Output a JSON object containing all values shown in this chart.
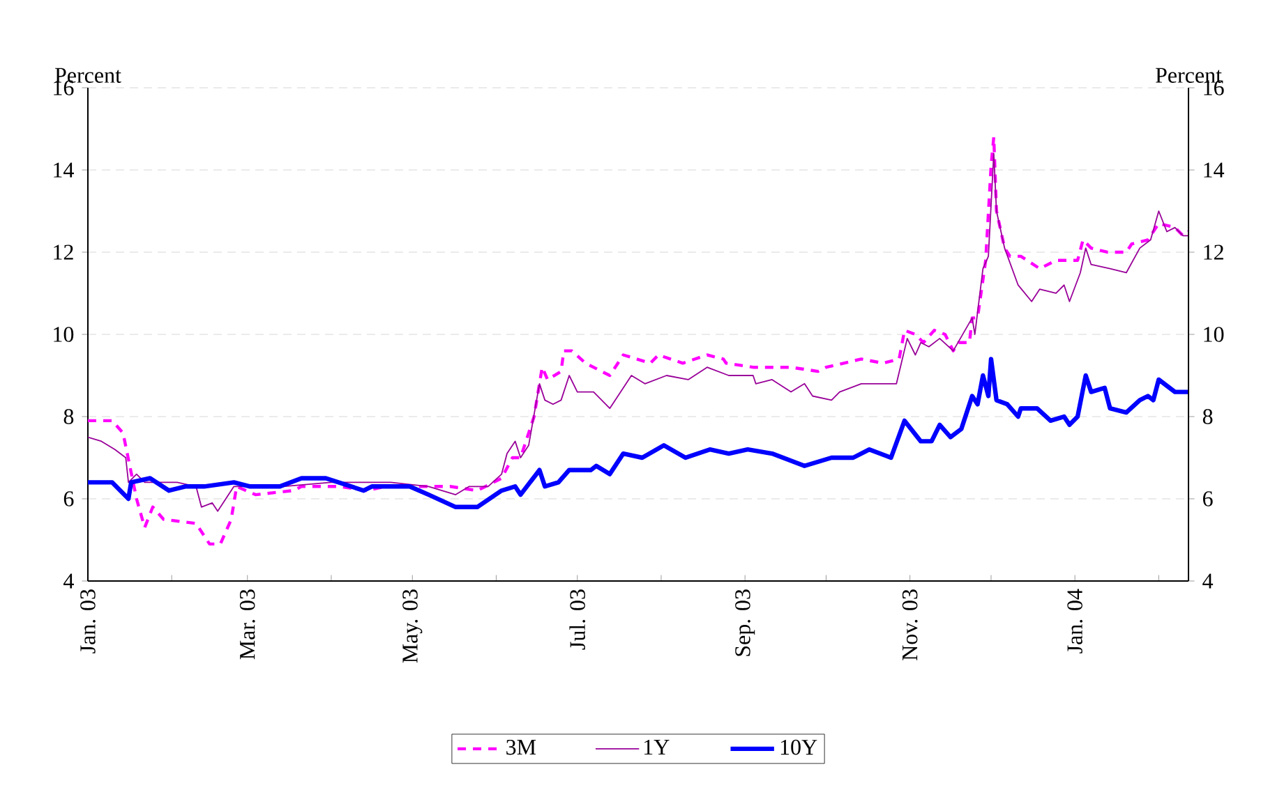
{
  "chart_data": {
    "type": "line",
    "ylabel": "Percent",
    "y2label": "Percent",
    "xlim": [
      "2003-01-01",
      "2004-02-12"
    ],
    "ylim": [
      4,
      16
    ],
    "y2lim": [
      4,
      16
    ],
    "yticks": [
      4,
      6,
      8,
      10,
      12,
      14,
      16
    ],
    "y2ticks": [
      4,
      6,
      8,
      10,
      12,
      14,
      16
    ],
    "xticks": [
      {
        "value": "2003-01-01",
        "label": "Jan. 03"
      },
      {
        "value": "2003-02-01",
        "label": null
      },
      {
        "value": "2003-03-01",
        "label": "Mar. 03"
      },
      {
        "value": "2003-04-01",
        "label": null
      },
      {
        "value": "2003-05-01",
        "label": "May. 03"
      },
      {
        "value": "2003-06-01",
        "label": null
      },
      {
        "value": "2003-07-01",
        "label": "Jul. 03"
      },
      {
        "value": "2003-08-01",
        "label": null
      },
      {
        "value": "2003-09-01",
        "label": "Sep. 03"
      },
      {
        "value": "2003-10-01",
        "label": null
      },
      {
        "value": "2003-11-01",
        "label": "Nov. 03"
      },
      {
        "value": "2003-12-01",
        "label": null
      },
      {
        "value": "2004-01-01",
        "label": "Jan. 04"
      },
      {
        "value": "2004-02-01",
        "label": null
      }
    ],
    "grid": "y",
    "legend": "bottom",
    "marker": "none",
    "series": [
      {
        "name": "3M",
        "color": "#ff00ff",
        "line_style": "dashed",
        "x": [
          "2003-01-01",
          "2003-01-10",
          "2003-01-14",
          "2003-01-19",
          "2003-01-22",
          "2003-01-25",
          "2003-01-29",
          "2003-02-10",
          "2003-02-15",
          "2003-02-19",
          "2003-02-23",
          "2003-02-25",
          "2003-03-04",
          "2003-03-18",
          "2003-03-21",
          "2003-04-04",
          "2003-04-14",
          "2003-04-21",
          "2003-04-30",
          "2003-05-15",
          "2003-05-25",
          "2003-06-03",
          "2003-06-07",
          "2003-06-10",
          "2003-06-15",
          "2003-06-18",
          "2003-06-20",
          "2003-06-25",
          "2003-06-26",
          "2003-06-29",
          "2003-07-04",
          "2003-07-13",
          "2003-07-18",
          "2003-07-28",
          "2003-07-31",
          "2003-08-09",
          "2003-08-18",
          "2003-08-24",
          "2003-08-25",
          "2003-09-04",
          "2003-09-18",
          "2003-09-28",
          "2003-10-01",
          "2003-10-14",
          "2003-10-22",
          "2003-10-28",
          "2003-10-30",
          "2003-11-03",
          "2003-11-06",
          "2003-11-10",
          "2003-11-14",
          "2003-11-17",
          "2003-11-19",
          "2003-11-23",
          "2003-11-24",
          "2003-11-26",
          "2003-11-29",
          "2003-12-01",
          "2003-12-02",
          "2003-12-03",
          "2003-12-06",
          "2003-12-08",
          "2003-12-12",
          "2003-12-19",
          "2003-12-25",
          "2004-01-02",
          "2004-01-04",
          "2004-01-07",
          "2004-01-13",
          "2004-01-20",
          "2004-01-22",
          "2004-01-28",
          "2004-02-01",
          "2004-02-07",
          "2004-02-10",
          "2004-02-12"
        ],
        "values": [
          7.9,
          7.9,
          7.6,
          6.0,
          5.3,
          5.8,
          5.5,
          5.4,
          4.9,
          4.9,
          5.5,
          6.3,
          6.1,
          6.2,
          6.3,
          6.3,
          6.2,
          6.3,
          6.3,
          6.3,
          6.2,
          6.5,
          7.0,
          7.0,
          8.0,
          9.2,
          8.9,
          9.1,
          9.6,
          9.6,
          9.3,
          9.0,
          9.5,
          9.3,
          9.5,
          9.3,
          9.5,
          9.4,
          9.3,
          9.2,
          9.2,
          9.1,
          9.2,
          9.4,
          9.3,
          9.4,
          10.1,
          10.0,
          9.8,
          10.1,
          10.0,
          9.6,
          9.8,
          9.8,
          10.4,
          10.4,
          11.8,
          14.1,
          14.8,
          13.0,
          12.1,
          11.9,
          11.9,
          11.6,
          11.8,
          11.8,
          12.3,
          12.1,
          12.0,
          12.0,
          12.2,
          12.3,
          12.7,
          12.6,
          12.4,
          12.5
        ]
      },
      {
        "name": "1Y",
        "color": "#990099",
        "line_style": "solid",
        "x": [
          "2003-01-01",
          "2003-01-06",
          "2003-01-11",
          "2003-01-15",
          "2003-01-16",
          "2003-01-19",
          "2003-01-22",
          "2003-02-03",
          "2003-02-10",
          "2003-02-12",
          "2003-02-16",
          "2003-02-18",
          "2003-02-20",
          "2003-02-24",
          "2003-03-14",
          "2003-04-01",
          "2003-04-23",
          "2003-05-07",
          "2003-05-17",
          "2003-05-22",
          "2003-05-29",
          "2003-06-03",
          "2003-06-05",
          "2003-06-08",
          "2003-06-10",
          "2003-06-13",
          "2003-06-17",
          "2003-06-19",
          "2003-06-22",
          "2003-06-25",
          "2003-06-28",
          "2003-07-01",
          "2003-07-07",
          "2003-07-13",
          "2003-07-21",
          "2003-07-26",
          "2003-08-03",
          "2003-08-11",
          "2003-08-18",
          "2003-08-26",
          "2003-09-04",
          "2003-09-05",
          "2003-09-11",
          "2003-09-18",
          "2003-09-23",
          "2003-09-26",
          "2003-10-03",
          "2003-10-06",
          "2003-10-14",
          "2003-10-27",
          "2003-10-31",
          "2003-11-03",
          "2003-11-05",
          "2003-11-08",
          "2003-11-12",
          "2003-11-17",
          "2003-11-24",
          "2003-11-25",
          "2003-11-28",
          "2003-11-30",
          "2003-12-02",
          "2003-12-03",
          "2003-12-06",
          "2003-12-11",
          "2003-12-16",
          "2003-12-19",
          "2003-12-25",
          "2003-12-28",
          "2003-12-30",
          "2004-01-03",
          "2004-01-05",
          "2004-01-07",
          "2004-01-14",
          "2004-01-20",
          "2004-01-25",
          "2004-01-29",
          "2004-02-01",
          "2004-02-04",
          "2004-02-07",
          "2004-02-10",
          "2004-02-12"
        ],
        "values": [
          7.5,
          7.4,
          7.2,
          7.0,
          6.4,
          6.6,
          6.4,
          6.4,
          6.3,
          5.8,
          5.9,
          5.7,
          5.9,
          6.3,
          6.3,
          6.4,
          6.4,
          6.3,
          6.1,
          6.3,
          6.3,
          6.6,
          7.1,
          7.4,
          7.0,
          7.3,
          8.8,
          8.4,
          8.3,
          8.4,
          9.0,
          8.6,
          8.6,
          8.2,
          9.0,
          8.8,
          9.0,
          8.9,
          9.2,
          9.0,
          9.0,
          8.8,
          8.9,
          8.6,
          8.8,
          8.5,
          8.4,
          8.6,
          8.8,
          8.8,
          9.9,
          9.5,
          9.8,
          9.7,
          9.9,
          9.6,
          10.4,
          10.0,
          11.6,
          11.9,
          14.4,
          13.0,
          12.1,
          11.2,
          10.8,
          11.1,
          11.0,
          11.2,
          10.8,
          11.5,
          12.1,
          11.7,
          11.6,
          11.5,
          12.1,
          12.3,
          13.0,
          12.5,
          12.6,
          12.4,
          12.4
        ]
      },
      {
        "name": "10Y",
        "color": "#0000ff",
        "line_style": "solid",
        "x": [
          "2003-01-01",
          "2003-01-10",
          "2003-01-16",
          "2003-01-17",
          "2003-01-24",
          "2003-01-31",
          "2003-02-06",
          "2003-02-13",
          "2003-02-24",
          "2003-03-02",
          "2003-03-13",
          "2003-03-21",
          "2003-03-30",
          "2003-04-13",
          "2003-04-16",
          "2003-04-30",
          "2003-05-07",
          "2003-05-17",
          "2003-05-25",
          "2003-06-03",
          "2003-06-08",
          "2003-06-10",
          "2003-06-17",
          "2003-06-19",
          "2003-06-24",
          "2003-06-28",
          "2003-07-06",
          "2003-07-08",
          "2003-07-13",
          "2003-07-18",
          "2003-07-25",
          "2003-08-02",
          "2003-08-10",
          "2003-08-19",
          "2003-08-26",
          "2003-09-02",
          "2003-09-11",
          "2003-09-23",
          "2003-10-03",
          "2003-10-11",
          "2003-10-17",
          "2003-10-25",
          "2003-10-30",
          "2003-11-05",
          "2003-11-09",
          "2003-11-12",
          "2003-11-16",
          "2003-11-20",
          "2003-11-24",
          "2003-11-26",
          "2003-11-28",
          "2003-11-30",
          "2003-12-01",
          "2003-12-03",
          "2003-12-07",
          "2003-12-11",
          "2003-12-12",
          "2003-12-18",
          "2003-12-23",
          "2003-12-28",
          "2003-12-30",
          "2004-01-02",
          "2004-01-05",
          "2004-01-07",
          "2004-01-12",
          "2004-01-14",
          "2004-01-20",
          "2004-01-25",
          "2004-01-28",
          "2004-01-30",
          "2004-02-01",
          "2004-02-07",
          "2004-02-12"
        ],
        "values": [
          6.4,
          6.4,
          6.0,
          6.4,
          6.5,
          6.2,
          6.3,
          6.3,
          6.4,
          6.3,
          6.3,
          6.5,
          6.5,
          6.2,
          6.3,
          6.3,
          6.1,
          5.8,
          5.8,
          6.2,
          6.3,
          6.1,
          6.7,
          6.3,
          6.4,
          6.7,
          6.7,
          6.8,
          6.6,
          7.1,
          7.0,
          7.3,
          7.0,
          7.2,
          7.1,
          7.2,
          7.1,
          6.8,
          7.0,
          7.0,
          7.2,
          7.0,
          7.9,
          7.4,
          7.4,
          7.8,
          7.5,
          7.7,
          8.5,
          8.3,
          9.0,
          8.5,
          9.4,
          8.4,
          8.3,
          8.0,
          8.2,
          8.2,
          7.9,
          8.0,
          7.8,
          8.0,
          9.0,
          8.6,
          8.7,
          8.2,
          8.1,
          8.4,
          8.5,
          8.4,
          8.9,
          8.6,
          8.6
        ]
      }
    ]
  }
}
